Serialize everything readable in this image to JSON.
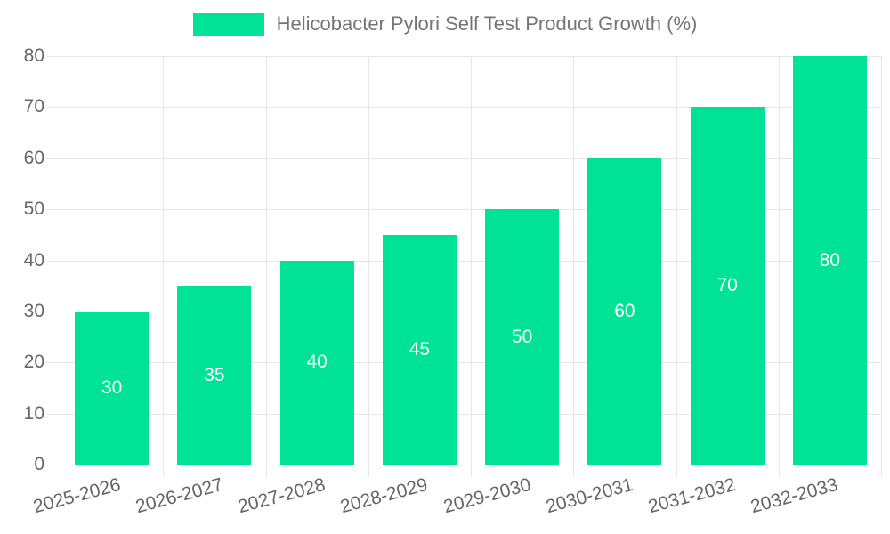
{
  "chart_data": {
    "type": "bar",
    "title": "Helicobacter Pylori Self Test Product Growth (%)",
    "categories": [
      "2025-2026",
      "2026-2027",
      "2027-2028",
      "2028-2029",
      "2029-2030",
      "2030-2031",
      "2031-2032",
      "2032-2033"
    ],
    "series": [
      {
        "name": "Helicobacter Pylori Self Test Product Growth (%)",
        "values": [
          30,
          35,
          40,
          45,
          50,
          60,
          70,
          80
        ]
      }
    ],
    "xlabel": "",
    "ylabel": "",
    "ylim": [
      0,
      80
    ],
    "ytick_step": 10,
    "yticks": [
      0,
      10,
      20,
      30,
      40,
      50,
      60,
      70,
      80
    ],
    "grid": "horizontal and vertical gridlines on",
    "legend_position": "top-center",
    "value_labels": "inside bar, centered, white",
    "x_label_rotation_deg": -15
  },
  "colors": {
    "bar": "#00E396",
    "grid": "#e7e7e7",
    "axis": "#a6a6a6",
    "axis_label": "#666666",
    "legend_text": "#757575",
    "value_label": "#ffffff",
    "background": "#ffffff"
  }
}
